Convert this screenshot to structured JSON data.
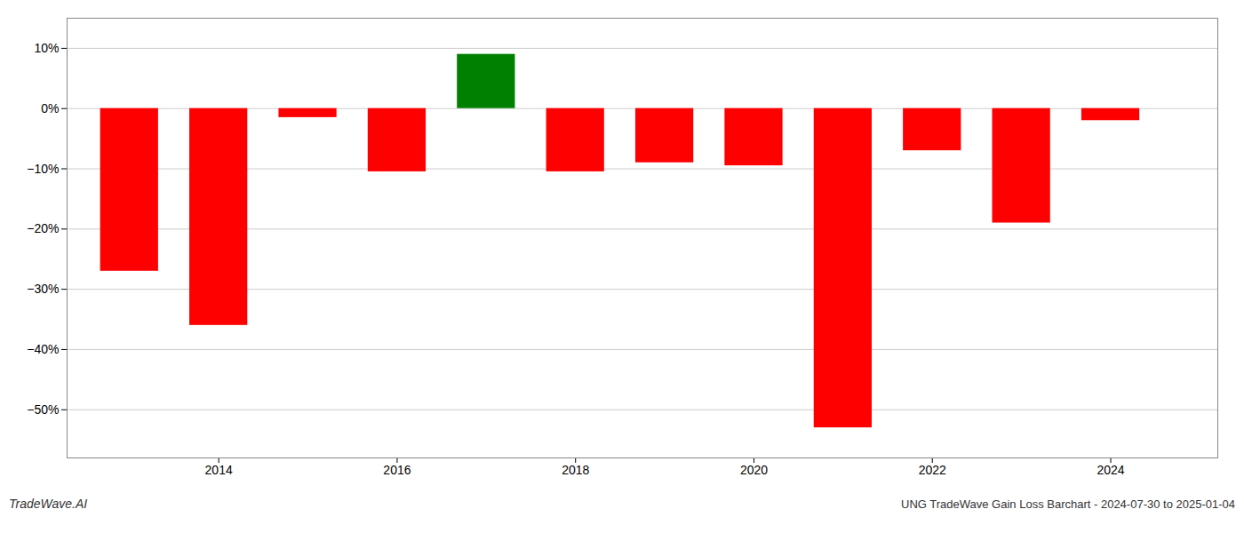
{
  "chart_data": {
    "type": "bar",
    "title": "UNG TradeWave Gain Loss Barchart - 2024-07-30 to 2025-01-04",
    "annotations": [
      "TradeWave.AI"
    ],
    "x": [
      2013,
      2014,
      2015,
      2016,
      2017,
      2018,
      2019,
      2020,
      2021,
      2022,
      2023,
      2024
    ],
    "values": [
      -27.0,
      -36.0,
      -1.5,
      -10.5,
      9.0,
      -10.5,
      -9.0,
      -9.5,
      -53.0,
      -7.0,
      -19.0,
      -2.0
    ],
    "colors": [
      "#FF0000",
      "#FF0000",
      "#FF0000",
      "#FF0000",
      "#008000",
      "#FF0000",
      "#FF0000",
      "#FF0000",
      "#FF0000",
      "#FF0000",
      "#FF0000",
      "#FF0000"
    ],
    "xlim": [
      2012.3,
      2025.2
    ],
    "xticks": [
      2014,
      2016,
      2018,
      2020,
      2022,
      2024
    ],
    "ylim": [
      -58,
      15
    ],
    "yticks": [
      {
        "value": 10,
        "label": "10%"
      },
      {
        "value": 0,
        "label": "0%"
      },
      {
        "value": -10,
        "label": "−10%"
      },
      {
        "value": -20,
        "label": "−20%"
      },
      {
        "value": -30,
        "label": "−30%"
      },
      {
        "value": -40,
        "label": "−40%"
      },
      {
        "value": -50,
        "label": "−50%"
      }
    ],
    "grid": true
  }
}
